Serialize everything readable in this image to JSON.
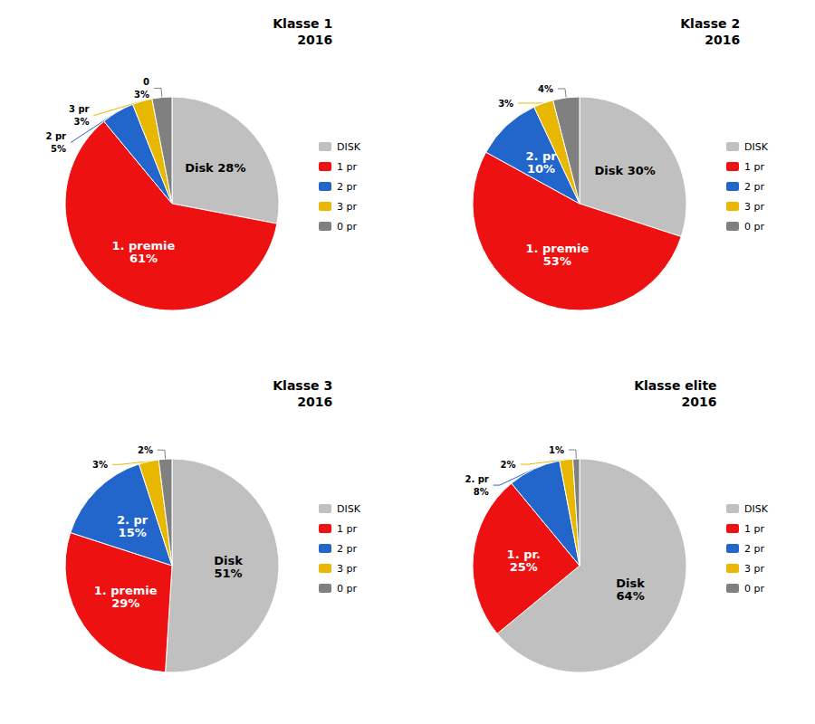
{
  "chart_data": [
    {
      "type": "pie",
      "title": "Klasse 1\n2016",
      "categories": [
        "DISK",
        "1 pr",
        "2 pr",
        "3 pr",
        "0 pr"
      ],
      "values": [
        28,
        61,
        5,
        3,
        3
      ],
      "value_labels": [
        "Disk 28%",
        "1. premie\n61%",
        "2 pr\n5%",
        "3 pr\n3%",
        "0\n3%"
      ],
      "colors": [
        "#c0c0c0",
        "#ee1111",
        "#2266cc",
        "#e8b800",
        "#808080"
      ],
      "data_labels": true,
      "legend": "right"
    },
    {
      "type": "pie",
      "title": "Klasse 2\n2016",
      "categories": [
        "DISK",
        "1 pr",
        "2 pr",
        "3 pr",
        "0 pr"
      ],
      "values": [
        30,
        53,
        10,
        3,
        4
      ],
      "value_labels": [
        "Disk 30%",
        "1. premie\n53%",
        "2. pr\n10%",
        "3%",
        "4%"
      ],
      "colors": [
        "#c0c0c0",
        "#ee1111",
        "#2266cc",
        "#e8b800",
        "#808080"
      ],
      "data_labels": true,
      "legend": "right"
    },
    {
      "type": "pie",
      "title": "Klasse 3\n2016",
      "categories": [
        "DISK",
        "1 pr",
        "2 pr",
        "3 pr",
        "0 pr"
      ],
      "values": [
        51,
        29,
        15,
        3,
        2
      ],
      "value_labels": [
        "Disk\n51%",
        "1. premie\n29%",
        "2. pr\n15%",
        "3%",
        "2%"
      ],
      "colors": [
        "#c0c0c0",
        "#ee1111",
        "#2266cc",
        "#e8b800",
        "#808080"
      ],
      "data_labels": true,
      "legend": "right"
    },
    {
      "type": "pie",
      "title": "Klasse elite\n2016",
      "categories": [
        "DISK",
        "1 pr",
        "2 pr",
        "3 pr",
        "0 pr"
      ],
      "values": [
        64,
        25,
        8,
        2,
        1
      ],
      "value_labels": [
        "Disk\n64%",
        "1. pr.\n25%",
        "2. pr\n8%",
        "2%",
        "1%"
      ],
      "colors": [
        "#c0c0c0",
        "#ee1111",
        "#2266cc",
        "#e8b800",
        "#808080"
      ],
      "data_labels": true,
      "legend": "right"
    }
  ]
}
